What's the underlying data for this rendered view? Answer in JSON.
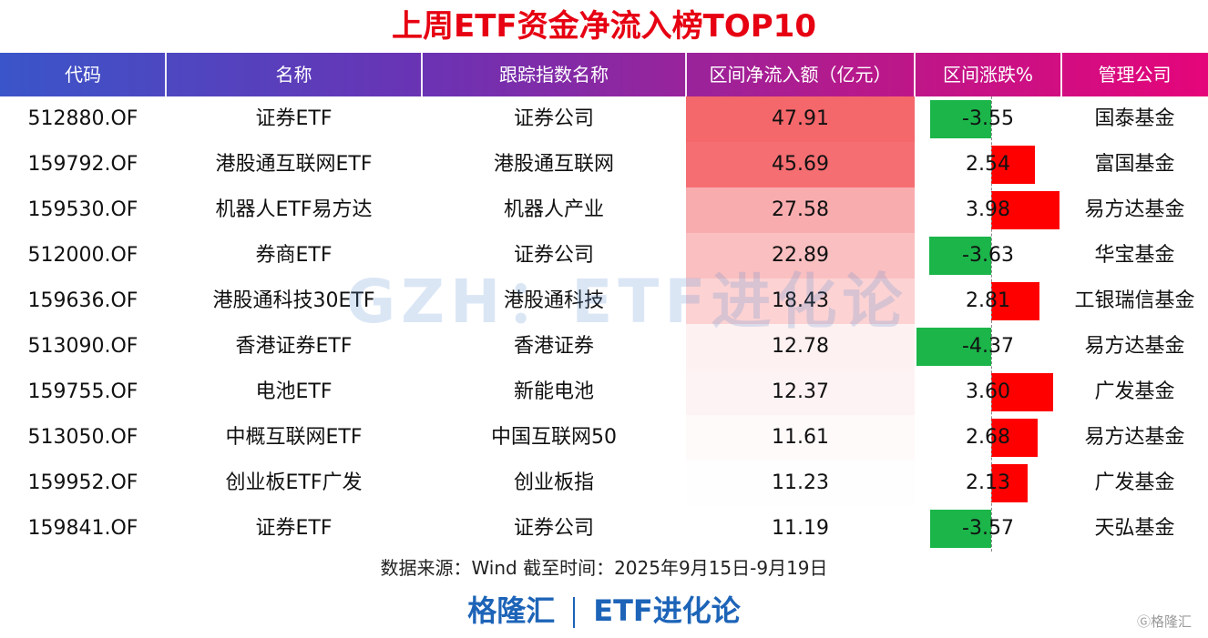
{
  "title": "上周ETF资金净流入榜TOP10",
  "headers": [
    "代码",
    "名称",
    "跟踪指数名称",
    "区间净流入额（亿元）",
    "区间涨跌%",
    "管理公司"
  ],
  "chart_data": {
    "type": "table",
    "title": "上周ETF资金净流入榜TOP10",
    "columns": [
      "代码",
      "名称",
      "跟踪指数名称",
      "区间净流入额（亿元）",
      "区间涨跌%",
      "管理公司"
    ],
    "rows": [
      {
        "code": "512880.OF",
        "name": "证券ETF",
        "index": "证券公司",
        "inflow": "47.91",
        "change": "-3.55",
        "manager": "国泰基金"
      },
      {
        "code": "159792.OF",
        "name": "港股通互联网ETF",
        "index": "港股通互联网",
        "inflow": "45.69",
        "change": "2.54",
        "manager": "富国基金"
      },
      {
        "code": "159530.OF",
        "name": "机器人ETF易方达",
        "index": "机器人产业",
        "inflow": "27.58",
        "change": "3.98",
        "manager": "易方达基金"
      },
      {
        "code": "512000.OF",
        "name": "券商ETF",
        "index": "证券公司",
        "inflow": "22.89",
        "change": "-3.63",
        "manager": "华宝基金"
      },
      {
        "code": "159636.OF",
        "name": "港股通科技30ETF",
        "index": "港股通科技",
        "inflow": "18.43",
        "change": "2.81",
        "manager": "工银瑞信基金"
      },
      {
        "code": "513090.OF",
        "name": "香港证券ETF",
        "index": "香港证券",
        "inflow": "12.78",
        "change": "-4.37",
        "manager": "易方达基金"
      },
      {
        "code": "159755.OF",
        "name": "电池ETF",
        "index": "新能电池",
        "inflow": "12.37",
        "change": "3.60",
        "manager": "广发基金"
      },
      {
        "code": "513050.OF",
        "name": "中概互联网ETF",
        "index": "中国互联网50",
        "inflow": "11.61",
        "change": "2.68",
        "manager": "易方达基金"
      },
      {
        "code": "159952.OF",
        "name": "创业板ETF广发",
        "index": "创业板指",
        "inflow": "11.23",
        "change": "2.13",
        "manager": "广发基金"
      },
      {
        "code": "159841.OF",
        "name": "证券ETF",
        "index": "证券公司",
        "inflow": "11.19",
        "change": "-3.57",
        "manager": "天弘基金"
      }
    ],
    "change_range": [
      -4.37,
      3.98
    ],
    "heatmap_column": "区间净流入额（亿元）",
    "bar_column": "区间涨跌%"
  },
  "colors": {
    "title": "#e60012",
    "heat_high": "#f4676b",
    "heat_low": "#ffffff",
    "bar_positive": "#ff0000",
    "bar_negative": "#1bb54a",
    "brand": "#1d64b8"
  },
  "watermark": "GZH：ETF进化论",
  "source": "数据来源：Wind 截至时间：2025年9月15日-9月19日",
  "brand": {
    "left": "格隆汇",
    "right": "ETF进化论"
  },
  "corner_logo": "格隆汇"
}
